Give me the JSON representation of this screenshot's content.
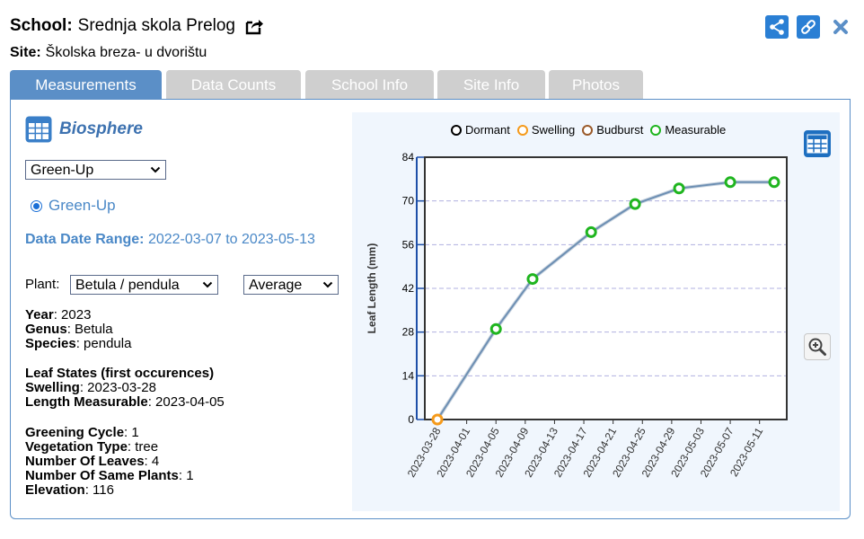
{
  "header": {
    "school_label": "School:",
    "school_name": "Srednja skola Prelog",
    "site_label": "Site:",
    "site_name": "Školska breza- u dvorištu"
  },
  "tabs": [
    {
      "label": "Measurements",
      "active": true
    },
    {
      "label": "Data Counts",
      "active": false
    },
    {
      "label": "School Info",
      "active": false
    },
    {
      "label": "Site Info",
      "active": false
    },
    {
      "label": "Photos",
      "active": false
    }
  ],
  "panel": {
    "title": "Biosphere",
    "protocol_select": "Green-Up",
    "radio_label": "Green-Up",
    "range_label": "Data Date Range:",
    "range_value": "2022-03-07 to 2023-05-13",
    "plant_label": "Plant:",
    "plant_select": "Betula / pendula",
    "stat_select": "Average"
  },
  "info": {
    "year_label": "Year",
    "year_value": ": 2023",
    "genus_label": "Genus",
    "genus_value": ": Betula",
    "species_label": "Species",
    "species_value": ": pendula",
    "leaf_states_heading": "Leaf States (first occurences)",
    "swelling_label": "Swelling",
    "swelling_value": ": 2023-03-28",
    "length_label": "Length Measurable",
    "length_value": ": 2023-04-05",
    "cycle_label": "Greening Cycle",
    "cycle_value": ": 1",
    "veg_label": "Vegetation Type",
    "veg_value": ": tree",
    "leaves_label": "Number Of Leaves",
    "leaves_value": ": 4",
    "same_label": "Number Of Same Plants",
    "same_value": ": 1",
    "elev_label": "Elevation",
    "elev_value": ": 116"
  },
  "chart_data": {
    "type": "line",
    "ylabel": "Leaf Length (mm)",
    "ylim": [
      0,
      84
    ],
    "yticks": [
      0,
      14,
      28,
      42,
      56,
      70,
      84
    ],
    "x_ticks": [
      "2023-03-28",
      "2023-04-01",
      "2023-04-05",
      "2023-04-09",
      "2023-04-13",
      "2023-04-17",
      "2023-04-21",
      "2023-04-25",
      "2023-04-29",
      "2023-05-03",
      "2023-05-07",
      "2023-05-11"
    ],
    "xlim": [
      "2023-03-28",
      "2023-05-13"
    ],
    "grid": true,
    "legend": [
      {
        "name": "Dormant",
        "color": "#000000"
      },
      {
        "name": "Swelling",
        "color": "#f59a1b"
      },
      {
        "name": "Budburst",
        "color": "#9a5a2a"
      },
      {
        "name": "Measurable",
        "color": "#1fb51f"
      }
    ],
    "points": [
      {
        "x": "2023-03-28",
        "y": 0,
        "state": "Swelling"
      },
      {
        "x": "2023-04-05",
        "y": 29,
        "state": "Measurable"
      },
      {
        "x": "2023-04-10",
        "y": 45,
        "state": "Measurable"
      },
      {
        "x": "2023-04-18",
        "y": 60,
        "state": "Measurable"
      },
      {
        "x": "2023-04-24",
        "y": 69,
        "state": "Measurable"
      },
      {
        "x": "2023-04-30",
        "y": 74,
        "state": "Measurable"
      },
      {
        "x": "2023-05-07",
        "y": 76,
        "state": "Measurable"
      },
      {
        "x": "2023-05-13",
        "y": 76,
        "state": "Measurable"
      }
    ],
    "line_color": "#6d8fb3"
  },
  "colors": {
    "accent": "#5b8fc7",
    "link": "#4a88c7",
    "grid": "#b0b0e0"
  }
}
